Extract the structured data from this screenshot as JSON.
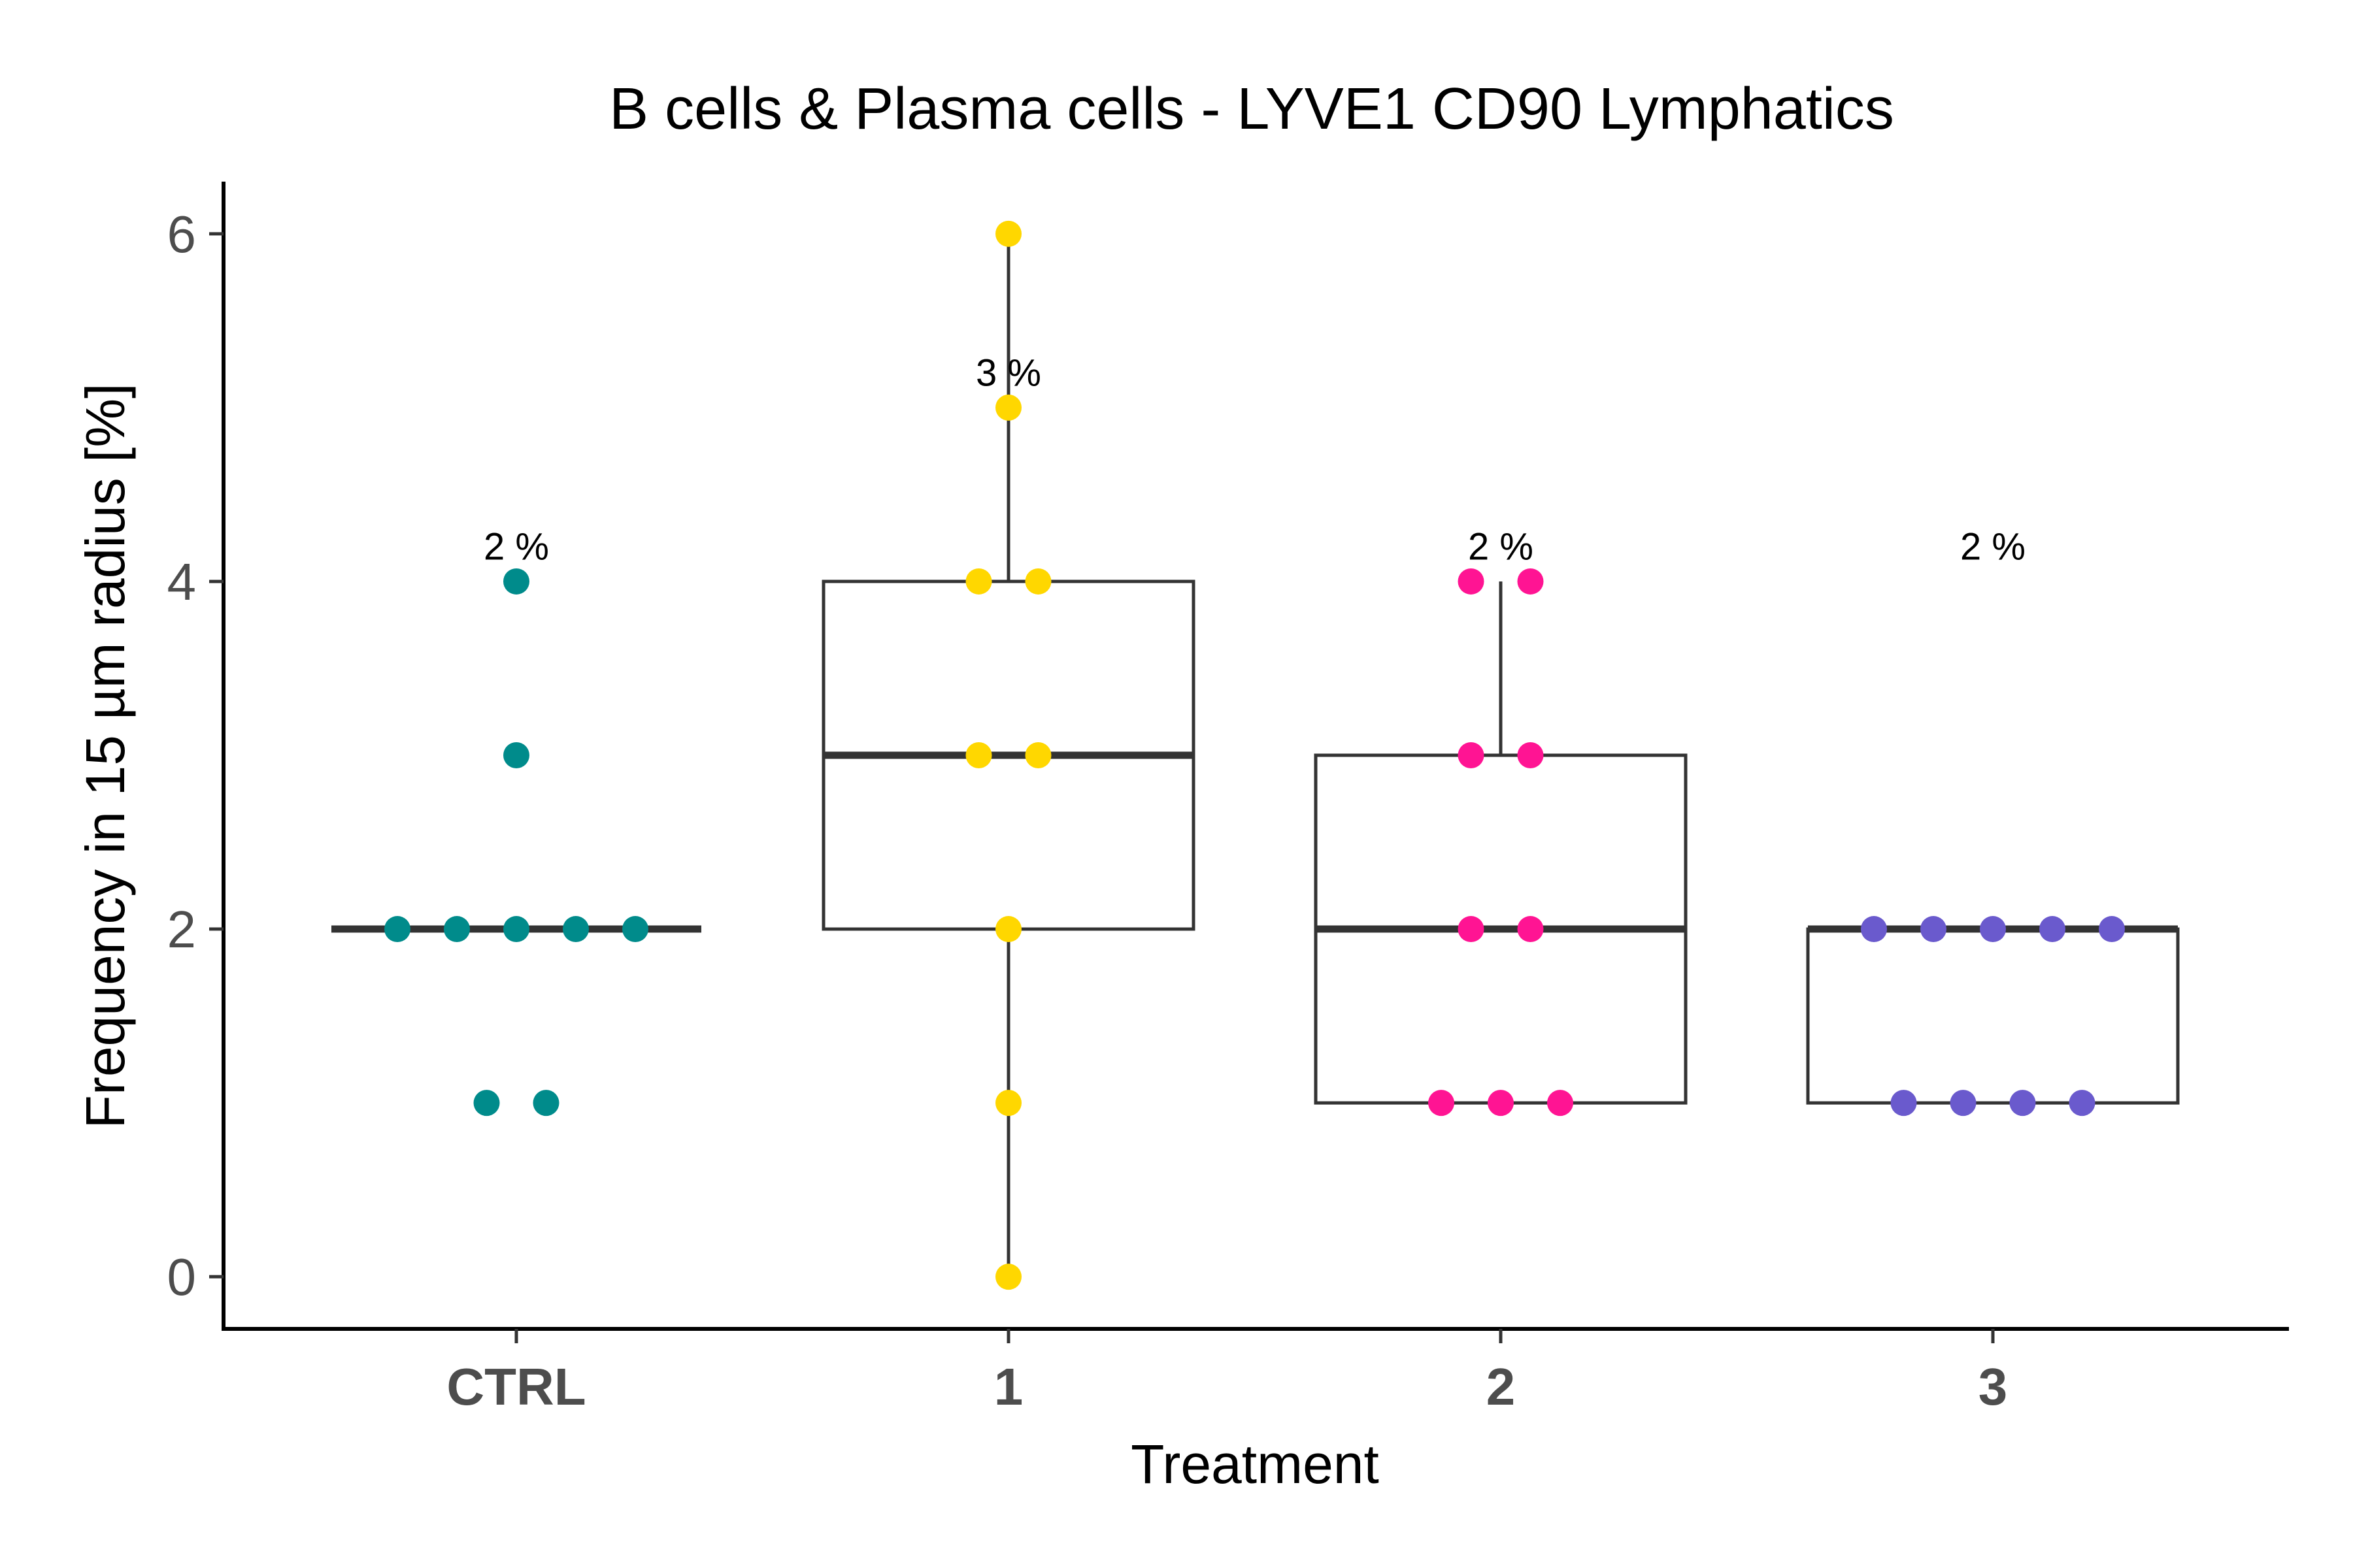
{
  "chart_data": {
    "type": "box",
    "title": "B cells & Plasma cells - LYVE1 CD90 Lymphatics",
    "xlabel": "Treatment",
    "ylabel": "Frequency in 15 µm radius [%]",
    "ylim": [
      -0.3,
      6.3
    ],
    "yticks": [
      "0",
      "2",
      "4",
      "6"
    ],
    "categories": [
      "CTRL",
      "1",
      "2",
      "3"
    ],
    "colors": [
      "#008B8B",
      "#FFD700",
      "#FF1493",
      "#6A5ACD"
    ],
    "annotations": [
      "2 %",
      "3 %",
      "2 %",
      "2 %"
    ],
    "annotation_y": [
      4.2,
      5.2,
      4.2,
      4.2
    ],
    "boxes": [
      {
        "category": "CTRL",
        "min": 2,
        "q1": 2,
        "median": 2,
        "q3": 2,
        "max": 2
      },
      {
        "category": "1",
        "min": 0,
        "q1": 2,
        "median": 3,
        "q3": 4,
        "max": 6
      },
      {
        "category": "2",
        "min": 1,
        "q1": 1,
        "median": 2,
        "q3": 3,
        "max": 4
      },
      {
        "category": "3",
        "min": 1,
        "q1": 1,
        "median": 2,
        "q3": 2,
        "max": 2
      }
    ],
    "points": [
      {
        "category": "CTRL",
        "values": [
          4,
          3,
          2,
          2,
          2,
          2,
          2,
          1,
          1
        ]
      },
      {
        "category": "1",
        "values": [
          6,
          5,
          4,
          4,
          3,
          3,
          2,
          1,
          0
        ]
      },
      {
        "category": "2",
        "values": [
          4,
          4,
          3,
          3,
          2,
          2,
          1,
          1,
          1
        ]
      },
      {
        "category": "3",
        "values": [
          2,
          2,
          2,
          2,
          2,
          1,
          1,
          1,
          1
        ]
      }
    ],
    "grid": false
  }
}
